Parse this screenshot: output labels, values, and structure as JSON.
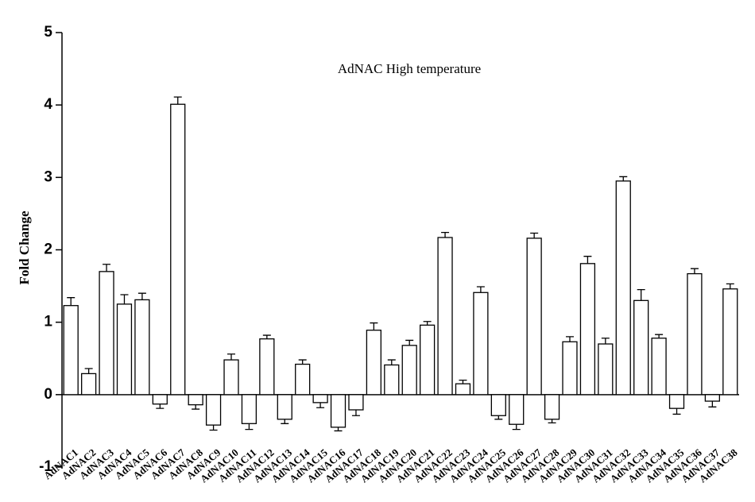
{
  "chart_data": {
    "type": "bar",
    "title": "AdNAC High temperature",
    "y_label": "Fold Change",
    "categories": [
      "AdNAC1",
      "AdNAC2",
      "AdNAC3",
      "AdNAC4",
      "AdNAC5",
      "AdNAC6",
      "AdNAC7",
      "AdNAC8",
      "AdNAC9",
      "AdNAC10",
      "AdNAC11",
      "AdNAC12",
      "AdNAC13",
      "AdNAC14",
      "AdNAC15",
      "AdNAC16",
      "AdNAC17",
      "AdNAC18",
      "AdNAC19",
      "AdNAC20",
      "AdNAC21",
      "AdNAC22",
      "AdNAC23",
      "AdNAC24",
      "AdNAC25",
      "AdNAC26",
      "AdNAC27",
      "AdNAC28",
      "AdNAC29",
      "AdNAC30",
      "AdNAC31",
      "AdNAC32",
      "AdNAC33",
      "AdNAC34",
      "AdNAC35",
      "AdNAC36",
      "AdNAC37",
      "AdNAC38"
    ],
    "values": [
      1.23,
      0.29,
      1.7,
      1.25,
      1.31,
      -0.13,
      4.01,
      -0.14,
      -0.42,
      0.48,
      -0.4,
      0.77,
      -0.34,
      0.42,
      -0.11,
      -0.45,
      -0.21,
      0.89,
      0.41,
      0.68,
      0.96,
      2.17,
      0.15,
      1.41,
      -0.29,
      -0.41,
      2.16,
      -0.34,
      0.73,
      1.81,
      0.7,
      2.95,
      1.3,
      0.78,
      -0.19,
      1.67,
      -0.09,
      1.46
    ],
    "errors": [
      0.11,
      0.07,
      0.1,
      0.13,
      0.09,
      0.06,
      0.1,
      0.06,
      0.07,
      0.08,
      0.08,
      0.05,
      0.06,
      0.06,
      0.07,
      0.05,
      0.08,
      0.1,
      0.07,
      0.07,
      0.05,
      0.07,
      0.05,
      0.08,
      0.05,
      0.07,
      0.07,
      0.05,
      0.07,
      0.1,
      0.08,
      0.06,
      0.15,
      0.05,
      0.08,
      0.07,
      0.08,
      0.07
    ],
    "color": "#ffffff",
    "ylim": [
      -1,
      5
    ],
    "yticks": [
      -1,
      0,
      1,
      2,
      3,
      4,
      5
    ]
  }
}
